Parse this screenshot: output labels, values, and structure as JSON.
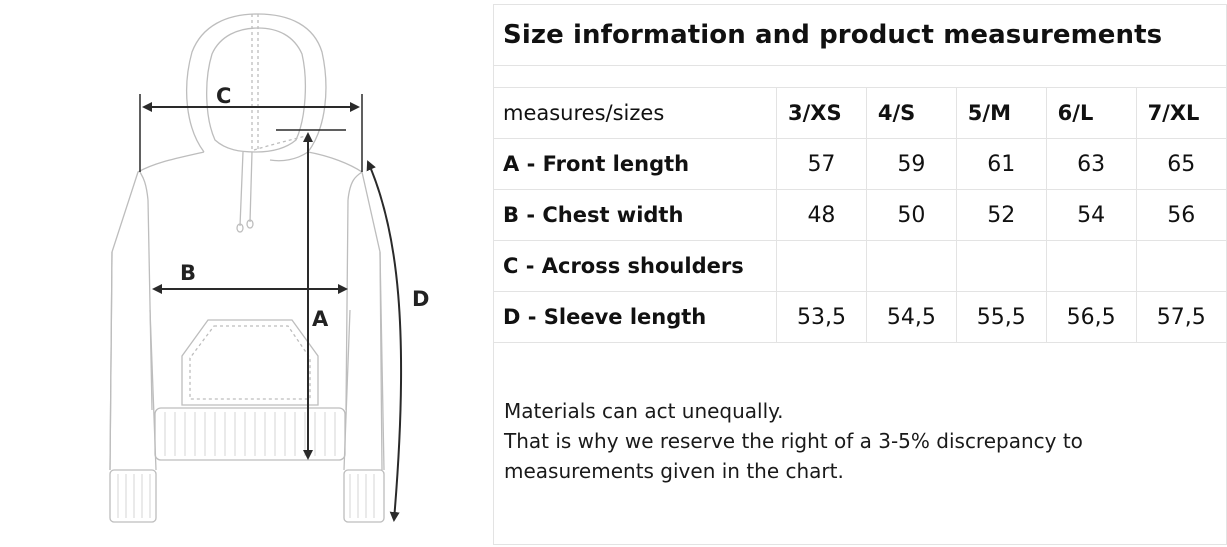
{
  "figure": {
    "letters": {
      "a": "A",
      "b": "B",
      "c": "C",
      "d": "D"
    },
    "line_color": "#2a2a2a",
    "garment_stroke": "#bdbdbd"
  },
  "panel": {
    "title": "Size information and product measurements",
    "header": {
      "label": "measures/sizes",
      "sizes": [
        "3/XS",
        "4/S",
        "5/M",
        "6/L",
        "7/XL"
      ]
    },
    "rows": [
      {
        "label": "A - Front length",
        "values": [
          "57",
          "59",
          "61",
          "63",
          "65"
        ]
      },
      {
        "label": "B - Chest width",
        "values": [
          "48",
          "50",
          "52",
          "54",
          "56"
        ]
      },
      {
        "label": "C - Across shoulders",
        "values": [
          "",
          "",
          "",
          "",
          ""
        ]
      },
      {
        "label": "D - Sleeve length",
        "values": [
          "53,5",
          "54,5",
          "55,5",
          "56,5",
          "57,5"
        ]
      }
    ],
    "note_lines": [
      "Materials can act unequally.",
      "That is why we reserve the right of a 3-5% discrepancy to",
      "measurements given in the chart."
    ]
  },
  "colors": {
    "grid": "#e3e3e3",
    "text": "#111111"
  }
}
